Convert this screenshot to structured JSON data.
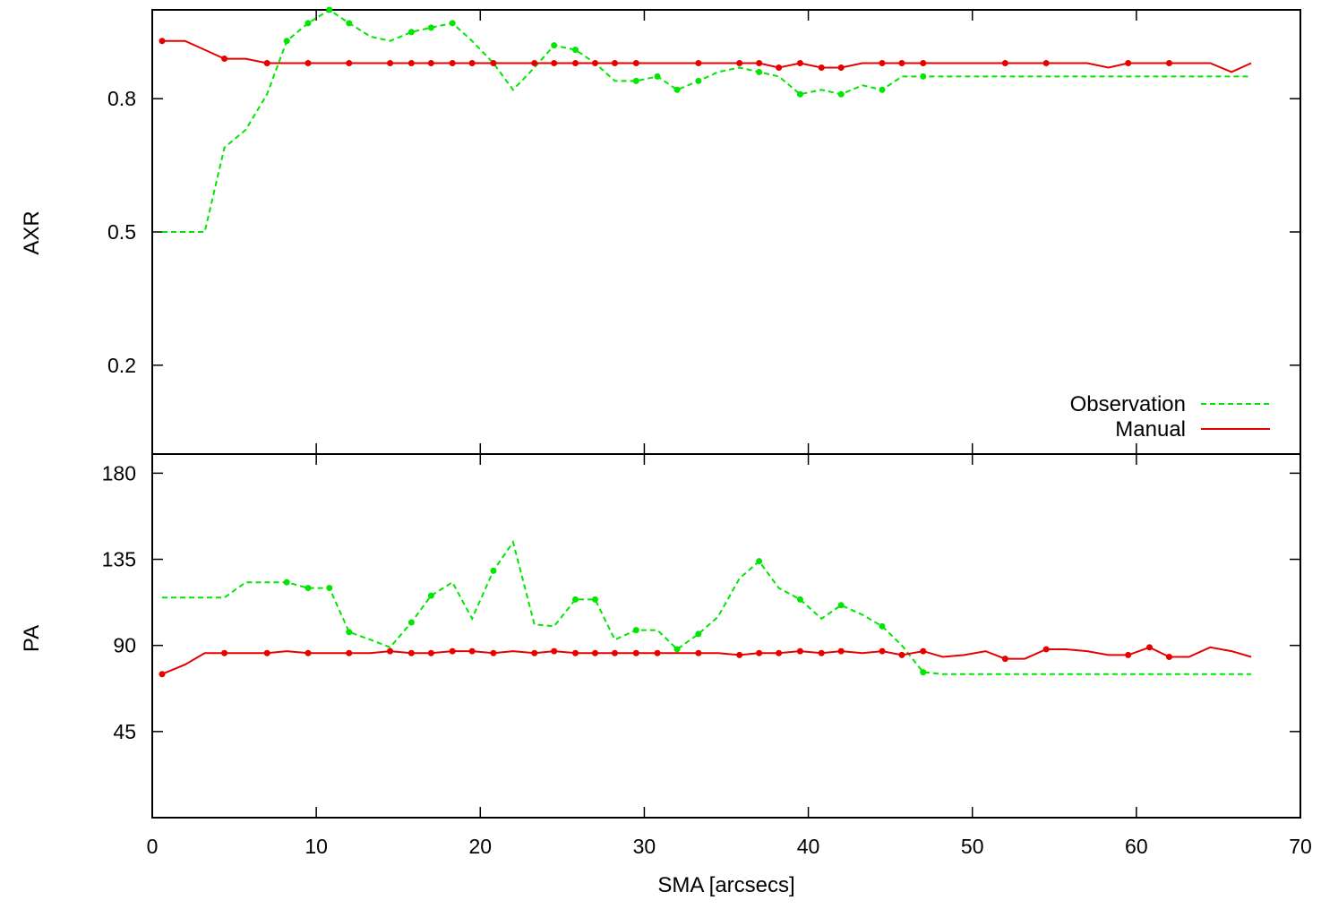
{
  "chart_data": [
    {
      "type": "line",
      "panel": "top",
      "ylabel": "AXR",
      "xlabel": "",
      "ylim": [
        0.0,
        1.0
      ],
      "yticks": [
        0.2,
        0.5,
        0.8
      ],
      "ytick_labels": [
        "0.2",
        "0.5",
        "0.8"
      ],
      "xlim": [
        0,
        70
      ],
      "legend_position": "bottom-right",
      "series": [
        {
          "name": "Observation",
          "color": "#00e600",
          "style": "dashed",
          "x": [
            0.6,
            2,
            3.2,
            4.4,
            5.7,
            7,
            8.2,
            9.5,
            10.8,
            12,
            13.3,
            14.5,
            15.8,
            17,
            18.3,
            19.5,
            20.8,
            22,
            23.3,
            24.5,
            25.8,
            27,
            28.2,
            29.5,
            30.8,
            32,
            33.3,
            34.5,
            35.8,
            37,
            38.2,
            39.5,
            40.8,
            42,
            43.3,
            44.5,
            45.7,
            47,
            48.2,
            67
          ],
          "y": [
            0.5,
            0.5,
            0.5,
            0.69,
            0.73,
            0.81,
            0.93,
            0.97,
            1.0,
            0.97,
            0.94,
            0.93,
            0.95,
            0.96,
            0.97,
            0.93,
            0.88,
            0.82,
            0.87,
            0.92,
            0.91,
            0.88,
            0.84,
            0.84,
            0.85,
            0.82,
            0.84,
            0.86,
            0.87,
            0.86,
            0.85,
            0.81,
            0.82,
            0.81,
            0.83,
            0.82,
            0.85,
            0.85,
            0.85,
            0.85
          ],
          "markers": [
            0,
            0,
            0,
            0,
            0,
            0,
            1,
            1,
            1,
            1,
            0,
            0,
            1,
            1,
            1,
            0,
            0,
            0,
            0,
            1,
            1,
            0,
            0,
            1,
            1,
            1,
            1,
            0,
            0,
            1,
            0,
            1,
            0,
            1,
            0,
            1,
            0,
            1,
            0,
            0
          ]
        },
        {
          "name": "Manual",
          "color": "#e60000",
          "style": "solid",
          "x": [
            0.6,
            2,
            3.2,
            4.4,
            5.7,
            7,
            8.2,
            9.5,
            10.8,
            12,
            13.3,
            14.5,
            15.8,
            17,
            18.3,
            19.5,
            20.8,
            22,
            23.3,
            24.5,
            25.8,
            27,
            28.2,
            29.5,
            30.8,
            32,
            33.3,
            34.5,
            35.8,
            37,
            38.2,
            39.5,
            40.8,
            42,
            43.3,
            44.5,
            45.7,
            47,
            48.2,
            52,
            54.5,
            57,
            58.3,
            59.5,
            62,
            64.5,
            65.8,
            67
          ],
          "y": [
            0.93,
            0.93,
            0.91,
            0.89,
            0.89,
            0.88,
            0.88,
            0.88,
            0.88,
            0.88,
            0.88,
            0.88,
            0.88,
            0.88,
            0.88,
            0.88,
            0.88,
            0.88,
            0.88,
            0.88,
            0.88,
            0.88,
            0.88,
            0.88,
            0.88,
            0.88,
            0.88,
            0.88,
            0.88,
            0.88,
            0.87,
            0.88,
            0.87,
            0.87,
            0.88,
            0.88,
            0.88,
            0.88,
            0.88,
            0.88,
            0.88,
            0.88,
            0.87,
            0.88,
            0.88,
            0.88,
            0.86,
            0.88
          ],
          "markers": [
            1,
            0,
            0,
            1,
            0,
            1,
            0,
            1,
            0,
            1,
            0,
            1,
            1,
            1,
            1,
            1,
            1,
            0,
            1,
            1,
            1,
            1,
            1,
            1,
            0,
            0,
            1,
            0,
            1,
            1,
            1,
            1,
            1,
            1,
            0,
            1,
            1,
            1,
            0,
            1,
            1,
            0,
            0,
            1,
            1,
            0,
            0,
            0
          ]
        }
      ]
    },
    {
      "type": "line",
      "panel": "bottom",
      "ylabel": "PA",
      "xlabel": "SMA [arcsecs]",
      "ylim": [
        0,
        190
      ],
      "yticks": [
        45,
        90,
        135,
        180
      ],
      "ytick_labels": [
        "45",
        "90",
        "135",
        "180"
      ],
      "xlim": [
        0,
        70
      ],
      "xticks": [
        0,
        10,
        20,
        30,
        40,
        50,
        60,
        70
      ],
      "xtick_labels": [
        "0",
        "10",
        "20",
        "30",
        "40",
        "50",
        "60",
        "70"
      ],
      "series": [
        {
          "name": "Observation",
          "color": "#00e600",
          "style": "dashed",
          "x": [
            0.6,
            2,
            3.2,
            4.4,
            5.7,
            7,
            8.2,
            9.5,
            10.8,
            12,
            13.3,
            14.5,
            15.8,
            17,
            18.3,
            19.5,
            20.8,
            22,
            23.3,
            24.5,
            25.8,
            27,
            28.2,
            29.5,
            30.8,
            32,
            33.3,
            34.5,
            35.8,
            37,
            38.2,
            39.5,
            40.8,
            42,
            43.3,
            44.5,
            45.7,
            47,
            48.2,
            67
          ],
          "y": [
            115,
            115,
            115,
            115,
            123,
            123,
            123,
            120,
            120,
            97,
            93,
            89,
            102,
            116,
            123,
            104,
            129,
            144,
            101,
            100,
            114,
            114,
            93,
            98,
            98,
            88,
            96,
            105,
            125,
            134,
            120,
            114,
            104,
            111,
            106,
            100,
            90,
            76,
            75,
            75
          ],
          "markers": [
            0,
            0,
            0,
            0,
            0,
            0,
            1,
            1,
            1,
            1,
            0,
            0,
            1,
            1,
            0,
            0,
            1,
            0,
            0,
            0,
            1,
            1,
            0,
            1,
            0,
            1,
            1,
            0,
            0,
            1,
            0,
            1,
            0,
            1,
            0,
            1,
            0,
            1,
            0,
            0
          ]
        },
        {
          "name": "Manual",
          "color": "#e60000",
          "style": "solid",
          "x": [
            0.6,
            2,
            3.2,
            4.4,
            5.7,
            7,
            8.2,
            9.5,
            10.8,
            12,
            13.3,
            14.5,
            15.8,
            17,
            18.3,
            19.5,
            20.8,
            22,
            23.3,
            24.5,
            25.8,
            27,
            28.2,
            29.5,
            30.8,
            32,
            33.3,
            34.5,
            35.8,
            37,
            38.2,
            39.5,
            40.8,
            42,
            43.3,
            44.5,
            45.7,
            47,
            48.2,
            49.5,
            50.8,
            52,
            53.2,
            54.5,
            55.7,
            57,
            58.3,
            59.5,
            60.8,
            62,
            63.2,
            64.5,
            65.8,
            67
          ],
          "y": [
            75,
            80,
            86,
            86,
            86,
            86,
            87,
            86,
            86,
            86,
            86,
            87,
            86,
            86,
            87,
            87,
            86,
            87,
            86,
            87,
            86,
            86,
            86,
            86,
            86,
            86,
            86,
            86,
            85,
            86,
            86,
            87,
            86,
            87,
            86,
            87,
            85,
            87,
            84,
            85,
            87,
            83,
            83,
            88,
            88,
            87,
            85,
            85,
            89,
            84,
            84,
            89,
            87,
            84
          ],
          "markers": [
            1,
            0,
            0,
            1,
            0,
            1,
            0,
            1,
            0,
            1,
            0,
            1,
            1,
            1,
            1,
            1,
            1,
            0,
            1,
            1,
            1,
            1,
            1,
            1,
            1,
            0,
            1,
            0,
            1,
            1,
            1,
            1,
            1,
            1,
            0,
            1,
            1,
            1,
            0,
            0,
            0,
            1,
            0,
            1,
            0,
            0,
            0,
            1,
            1,
            1,
            0,
            0,
            0,
            0
          ]
        }
      ]
    }
  ],
  "legend": {
    "items": [
      {
        "label": "Observation",
        "color": "#00e600",
        "style": "dashed"
      },
      {
        "label": "Manual",
        "color": "#e60000",
        "style": "solid"
      }
    ]
  }
}
